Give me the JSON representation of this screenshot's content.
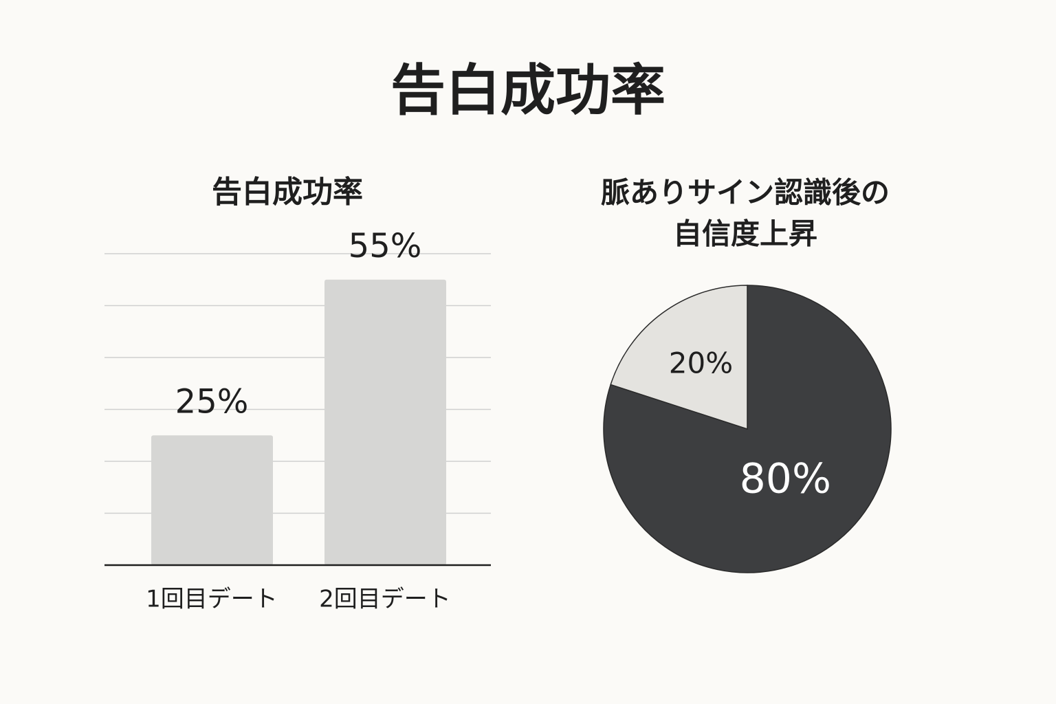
{
  "title": "告白成功率",
  "chart_data": [
    {
      "type": "bar",
      "title": "告白成功率",
      "categories": [
        "1回目デート",
        "2回目デート"
      ],
      "values": [
        25,
        55
      ],
      "value_labels": [
        "25%",
        "55%"
      ],
      "color": "#d6d6d4",
      "ylim": [
        0,
        60
      ],
      "yticks": [
        0,
        10,
        20,
        30,
        40,
        50,
        60
      ],
      "grid": true
    },
    {
      "type": "pie",
      "title": [
        "脈ありサイン認識後の",
        "自信度上昇"
      ],
      "values": [
        80,
        20
      ],
      "value_labels": [
        "80%",
        "20%"
      ],
      "colors": [
        "#3d3e40",
        "#e4e3df"
      ]
    }
  ]
}
